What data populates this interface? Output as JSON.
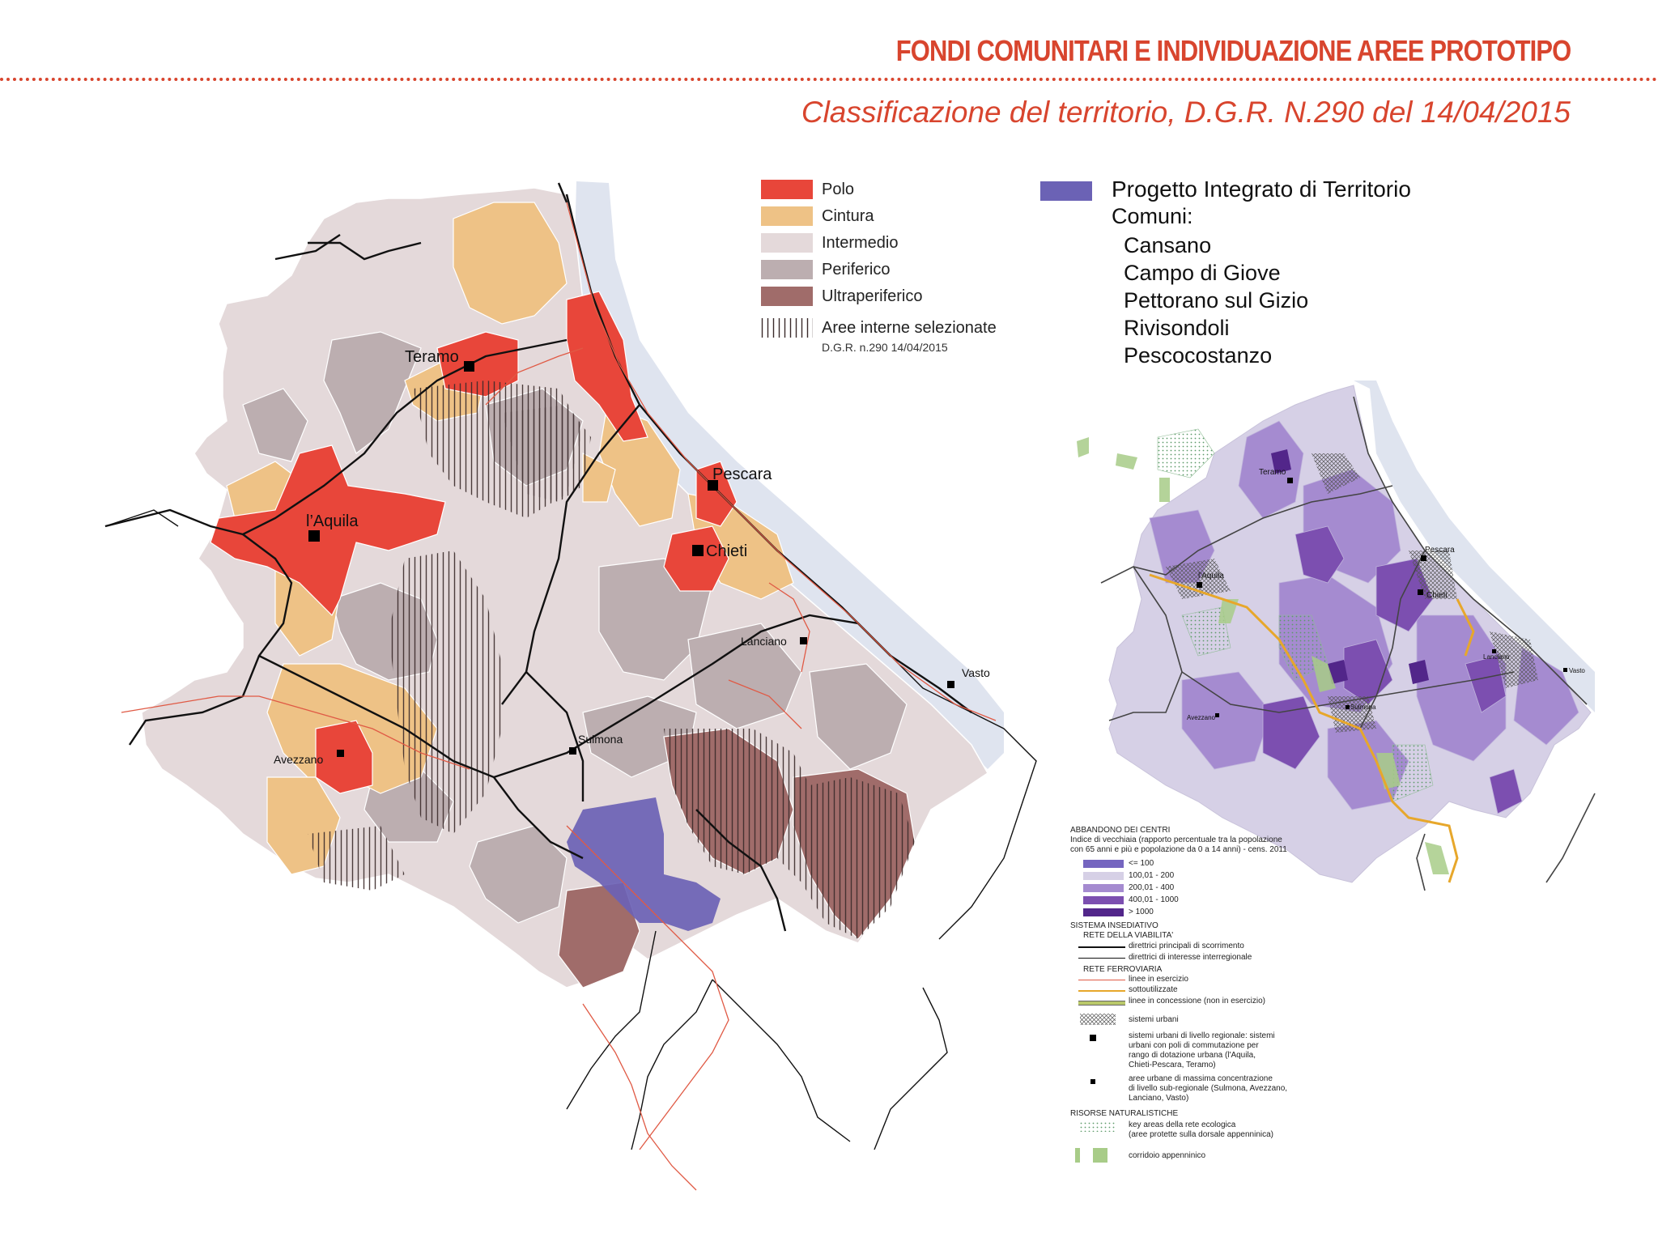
{
  "header": {
    "title": "FONDI COMUNITARI E INDIVIDUAZIONE AREE PROTOTIPO",
    "subtitle": "Classificazione del territorio, D.G.R. N.290 del 14/04/2015"
  },
  "legend_main": {
    "items": [
      {
        "label": "Polo",
        "color": "#e8463a"
      },
      {
        "label": "Cintura",
        "color": "#eec286"
      },
      {
        "label": "Intermedio",
        "color": "#e4d9da"
      },
      {
        "label": "Periferico",
        "color": "#bcaeb0"
      },
      {
        "label": "Ultraperiferico",
        "color": "#a06c6a"
      }
    ],
    "hatch_label": "Aree interne selezionate",
    "hatch_sub": "D.G.R. n.290 14/04/2015"
  },
  "pit": {
    "color": "#6b62b5",
    "title": "Progetto Integrato di Territorio",
    "comuni_label": "Comuni:",
    "comuni": [
      "Cansano",
      "Campo di Giove",
      "Pettorano sul Gizio",
      "Rivisondoli",
      "Pescocostanzo"
    ]
  },
  "main_map": {
    "cities": {
      "teramo": "Teramo",
      "laquila": "l’Aquila",
      "pescara": "Pescara",
      "chieti": "Chieti",
      "lanciano": "Lanciano",
      "vasto": "Vasto",
      "sulmona": "Sulmona",
      "avezzano": "Avezzano"
    }
  },
  "small_map": {
    "cities": {
      "teramo": "Teramo",
      "laquila": "l'Aquila",
      "pescara": "Pescara",
      "chieti": "Chieti",
      "lanciano": "Lanciano",
      "vasto": "Vasto",
      "sulmona": "Sulmona",
      "avezzano": "Avezzano"
    }
  },
  "small_legend": {
    "abbandono_title": "ABBANDONO DEI CENTRI",
    "abbandono_desc1": "Indice di vecchiaia (rapporto percentuale tra la popolazione",
    "abbandono_desc2": "con 65 anni e più e popolazione da 0 a 14 anni) - cens. 2011",
    "classes": [
      {
        "label": "<= 100",
        "color": "#7565c0"
      },
      {
        "label": "100,01 - 200",
        "color": "#d6d0e6"
      },
      {
        "label": "200,01 - 400",
        "color": "#a58bd0"
      },
      {
        "label": "400,01 - 1000",
        "color": "#7c4fb0"
      },
      {
        "label": "> 1000",
        "color": "#52268a"
      }
    ],
    "sistema_title": "SISTEMA INSEDIATIVO",
    "viabilita_title": "RETE DELLA VIABILITA'",
    "viabilita_1": "direttrici principali di scorrimento",
    "viabilita_2": "direttrici di interesse interregionale",
    "ferrovia_title": "RETE FERROVIARIA",
    "ferrovia_1": "linee in esercizio",
    "ferrovia_2": "sottoutilizzate",
    "ferrovia_3": "linee in concessione (non in esercizio)",
    "sistemi_urbani": "sistemi urbani",
    "regionali_1": "sistemi urbani di livello regionale: sistemi",
    "regionali_2": "urbani con poli di commutazione per",
    "regionali_3": "rango di dotazione urbana (l'Aquila,",
    "regionali_4": "Chieti-Pescara, Teramo)",
    "subreg_1": "aree urbane di massima concentrazione",
    "subreg_2": "di livello sub-regionale (Sulmona, Avezzano,",
    "subreg_3": "Lanciano, Vasto)",
    "risorse_title": "RISORSE NATURALISTICHE",
    "key_1": "key areas della rete ecologica",
    "key_2": "(aree protette sulla dorsale appenninica)",
    "corridoio": "corridoio appenninico"
  }
}
